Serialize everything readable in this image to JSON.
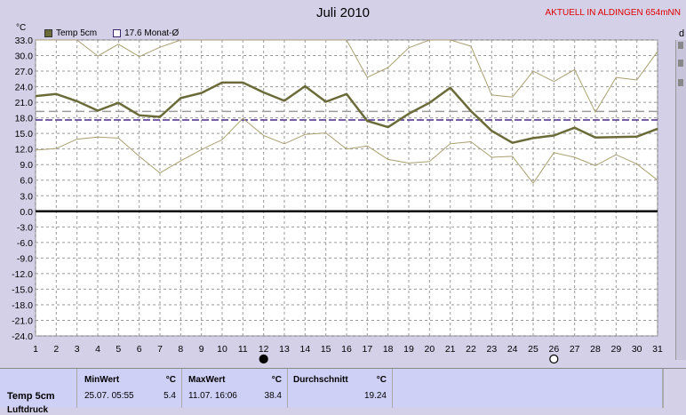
{
  "title": "Juli 2010",
  "status": "AKTUELL IN ALDINGEN 654mNN",
  "unit_left": "°C",
  "unit_right": "d",
  "legend": [
    {
      "label": "Temp 5cm"
    },
    {
      "label": "17.6 Monat-Ø"
    }
  ],
  "colors": {
    "temp": "#6b6b3a",
    "band": "#a8a070",
    "avg": "#4a2a8a",
    "dash": "#9a9a9a",
    "zero": "#000000",
    "grid": "#9a9a9a"
  },
  "chart_data": {
    "type": "line",
    "title": "Juli 2010",
    "xlabel": "",
    "ylabel": "°C",
    "x": [
      1,
      2,
      3,
      4,
      5,
      6,
      7,
      8,
      9,
      10,
      11,
      12,
      13,
      14,
      15,
      16,
      17,
      18,
      19,
      20,
      21,
      22,
      23,
      24,
      25,
      26,
      27,
      28,
      29,
      30,
      31
    ],
    "ylim": [
      -24,
      33
    ],
    "yticks": [
      "33.0",
      "30.0",
      "27.0",
      "24.0",
      "21.0",
      "18.0",
      "15.0",
      "12.0",
      "9.0",
      "6.0",
      "3.0",
      "0.0",
      "-3.0",
      "-6.0",
      "-9.0",
      "-12.0",
      "-15.0",
      "-18.0",
      "-21.0",
      "-24.0"
    ],
    "series": [
      {
        "name": "Temp 5cm",
        "values": [
          22.2,
          22.6,
          21.2,
          19.4,
          20.9,
          18.5,
          18.2,
          21.8,
          22.8,
          24.8,
          24.8,
          22.9,
          21.3,
          24.1,
          21.1,
          22.6,
          17.4,
          16.2,
          18.8,
          20.9,
          23.8,
          19.3,
          15.5,
          13.2,
          14.1,
          14.6,
          16.1,
          14.2,
          14.3,
          14.4,
          15.9
        ]
      },
      {
        "name": "Max",
        "values": [
          34,
          34,
          34,
          29.9,
          32.2,
          29.8,
          31.6,
          34,
          34,
          34,
          34,
          34,
          34,
          34,
          33,
          34,
          25.8,
          27.7,
          31.5,
          34,
          34,
          31.8,
          22.4,
          22,
          27,
          25,
          27.3,
          19.1,
          25.8,
          25.3,
          30.8
        ]
      },
      {
        "name": "Min",
        "values": [
          11.8,
          12.1,
          13.9,
          14.3,
          14.1,
          10.6,
          7.4,
          9.7,
          11.9,
          13.8,
          17.9,
          14.6,
          13,
          14.8,
          15.1,
          12,
          12.6,
          10,
          9.3,
          9.6,
          13,
          13.4,
          10.4,
          10.6,
          5.4,
          11.3,
          10.4,
          8.8,
          10.9,
          9.1,
          6
        ]
      }
    ],
    "reference_lines": [
      {
        "label": "17.6 Monat-Ø",
        "value": 17.6,
        "style": "dashed"
      },
      {
        "value": 19.24,
        "style": "dashed"
      }
    ],
    "moon_markers": [
      {
        "day": 12,
        "phase": "new"
      },
      {
        "day": 26,
        "phase": "full"
      }
    ],
    "grid": true
  },
  "stats": {
    "row_label": "Temp 5cm",
    "row_label2": "Luftdruck",
    "min_head": "MinWert",
    "min_unit": "°C",
    "min_time": "25.07.  05:55",
    "min_value": "5.4",
    "max_head": "MaxWert",
    "max_unit": "°C",
    "max_time": "11.07.  16:06",
    "max_value": "38.4",
    "avg_head": "Durchschnitt",
    "avg_unit": "°C",
    "avg_value": "19.24"
  }
}
